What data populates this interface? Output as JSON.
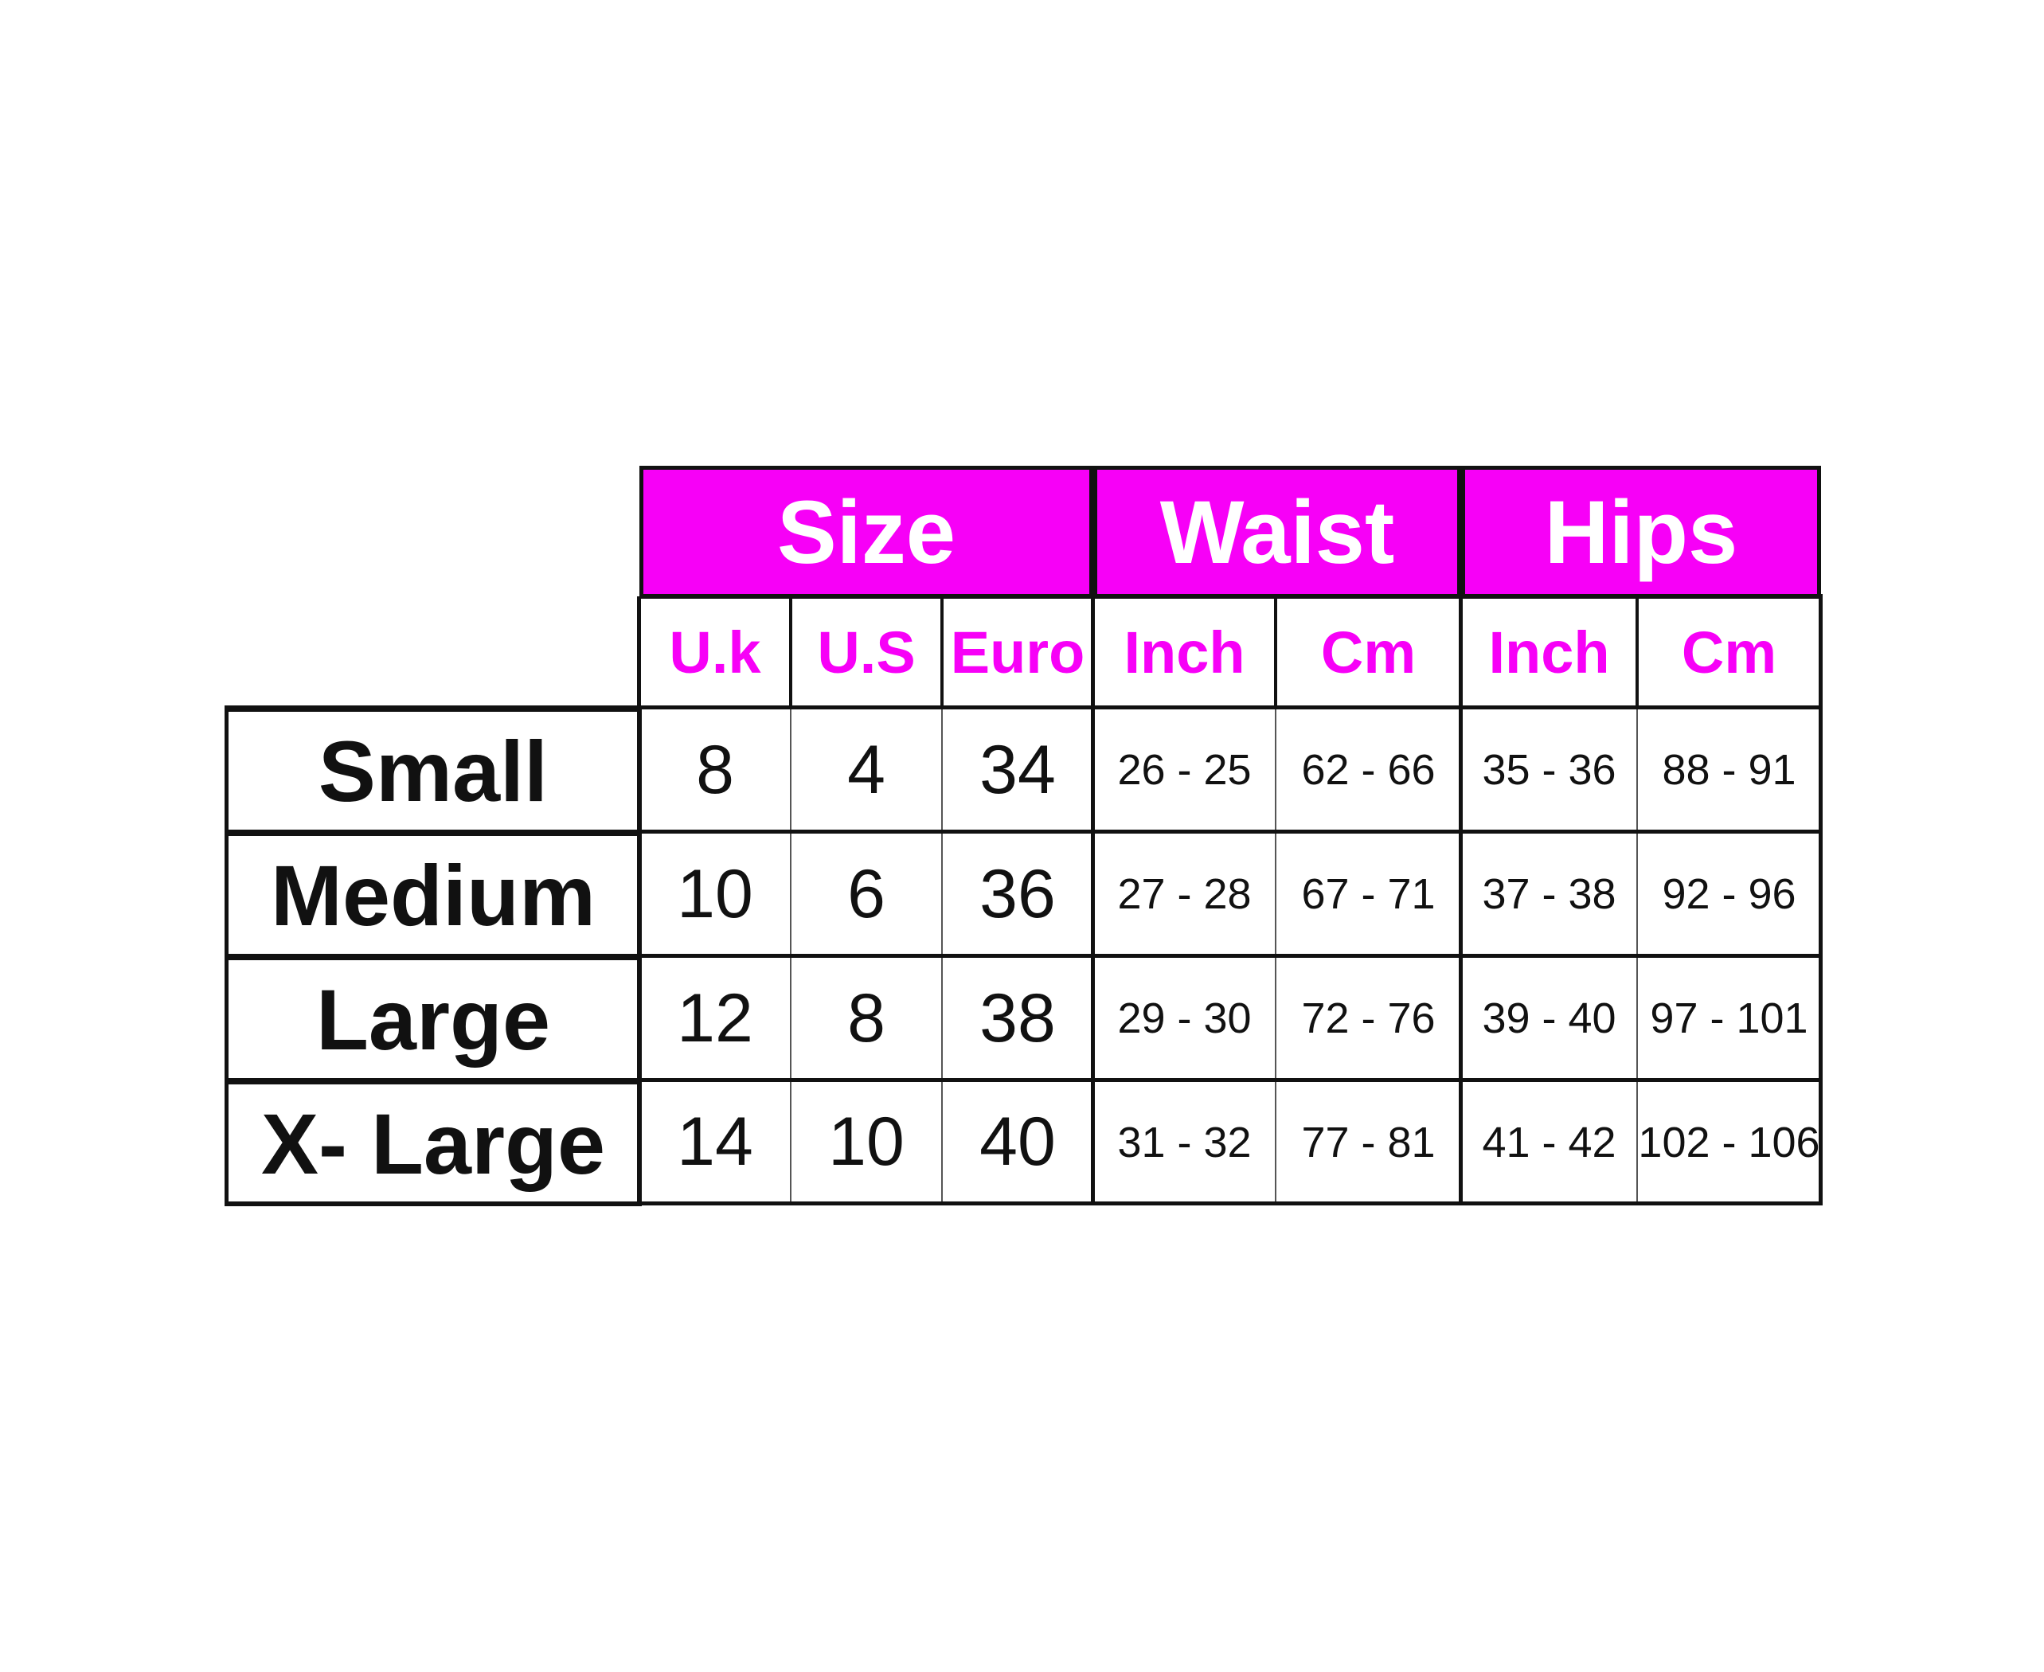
{
  "groups": {
    "size": "Size",
    "waist": "Waist",
    "hips": "Hips"
  },
  "subheaders": [
    "U.k",
    "U.S",
    "Euro",
    "Inch",
    "Cm",
    "Inch",
    "Cm"
  ],
  "rows": [
    {
      "label": "Small",
      "cells": [
        "8",
        "4",
        "34",
        "26 - 25",
        "62 - 66",
        "35 - 36",
        "88 - 91"
      ]
    },
    {
      "label": "Medium",
      "cells": [
        "10",
        "6",
        "36",
        "27 - 28",
        "67 - 71",
        "37 - 38",
        "92 - 96"
      ]
    },
    {
      "label": "Large",
      "cells": [
        "12",
        "8",
        "38",
        "29 - 30",
        "72 - 76",
        "39 - 40",
        "97 - 101"
      ]
    },
    {
      "label": "X- Large",
      "cells": [
        "14",
        "10",
        "40",
        "31 - 32",
        "77 - 81",
        "41 - 42",
        "102 - 106"
      ]
    }
  ],
  "colors": {
    "accent": "#f700f7",
    "text": "#111111"
  }
}
